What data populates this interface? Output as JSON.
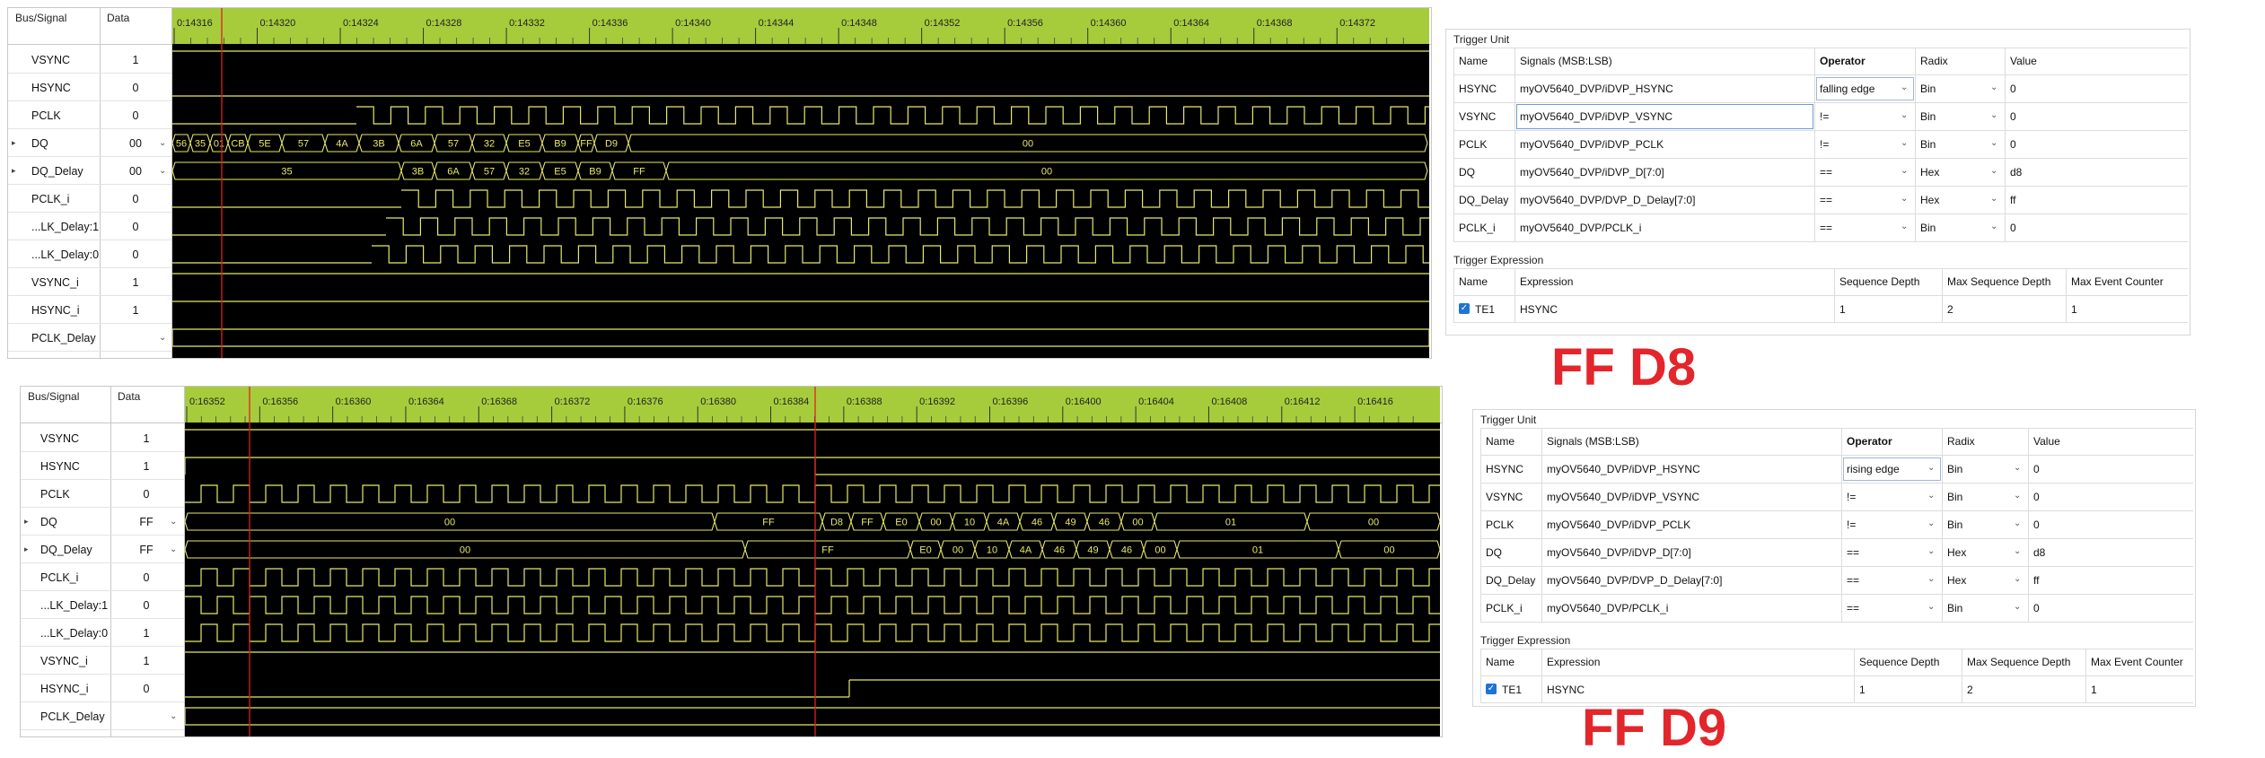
{
  "colors": {
    "wave": "#e8e86a",
    "timeline": "#a6cc3c",
    "cursor": "#e02020",
    "accent": "#e3262b"
  },
  "waves": [
    {
      "headers": {
        "bus_signal": "Bus/Signal",
        "data": "Data"
      },
      "timeline_labels": [
        "0:14316",
        "0:14320",
        "0:14324",
        "0:14328",
        "0:14332",
        "0:14336",
        "0:14340",
        "0:14344",
        "0:14348",
        "0:14352",
        "0:14356",
        "0:14360",
        "0:14364",
        "0:14368",
        "0:14372"
      ],
      "rows": [
        {
          "name": "VSYNC",
          "value": "1"
        },
        {
          "name": "HSYNC",
          "value": "0"
        },
        {
          "name": "PCLK",
          "value": "0"
        },
        {
          "name": "DQ",
          "value": "00"
        },
        {
          "name": "DQ_Delay",
          "value": "00"
        },
        {
          "name": "PCLK_i",
          "value": "0"
        },
        {
          "name": "...LK_Delay:1",
          "value": "0"
        },
        {
          "name": "...LK_Delay:0",
          "value": "0"
        },
        {
          "name": "VSYNC_i",
          "value": "1"
        },
        {
          "name": "HSYNC_i",
          "value": "1"
        },
        {
          "name": "PCLK_Delay",
          "value": ""
        }
      ],
      "dq_labels": [
        "56",
        "35",
        "01",
        "CB",
        "5E",
        "57",
        "4A",
        "3B",
        "6A",
        "57",
        "32",
        "E5",
        "B9",
        "FF",
        "D9",
        "00"
      ],
      "dqd_labels": [
        "35",
        "3B",
        "6A",
        "57",
        "32",
        "E5",
        "B9",
        "FF",
        "00"
      ]
    },
    {
      "headers": {
        "bus_signal": "Bus/Signal",
        "data": "Data"
      },
      "timeline_labels": [
        "0:16352",
        "0:16356",
        "0:16360",
        "0:16364",
        "0:16368",
        "0:16372",
        "0:16376",
        "0:16380",
        "0:16384",
        "0:16388",
        "0:16392",
        "0:16396",
        "0:16400",
        "0:16404",
        "0:16408",
        "0:16412",
        "0:16416"
      ],
      "rows": [
        {
          "name": "VSYNC",
          "value": "1"
        },
        {
          "name": "HSYNC",
          "value": "1"
        },
        {
          "name": "PCLK",
          "value": "0"
        },
        {
          "name": "DQ",
          "value": "FF"
        },
        {
          "name": "DQ_Delay",
          "value": "FF"
        },
        {
          "name": "PCLK_i",
          "value": "0"
        },
        {
          "name": "...LK_Delay:1",
          "value": "0"
        },
        {
          "name": "...LK_Delay:0",
          "value": "1"
        },
        {
          "name": "VSYNC_i",
          "value": "1"
        },
        {
          "name": "HSYNC_i",
          "value": "0"
        },
        {
          "name": "PCLK_Delay",
          "value": ""
        }
      ],
      "dq_labels": [
        "00",
        "FF",
        "D8",
        "FF",
        "E0",
        "00",
        "10",
        "4A",
        "46",
        "49",
        "46",
        "00",
        "01",
        "00"
      ],
      "dqd_labels": [
        "00",
        "FF",
        "E0",
        "00",
        "10",
        "4A",
        "46",
        "49",
        "46",
        "00",
        "01",
        "00"
      ]
    }
  ],
  "triggers": [
    {
      "unit_title": "Trigger Unit",
      "unit_headers": [
        "Name",
        "Signals (MSB:LSB)",
        "Operator",
        "Radix",
        "Value"
      ],
      "unit_rows": [
        {
          "name": "HSYNC",
          "signal": "myOV5640_DVP/iDVP_HSYNC",
          "operator": "falling edge",
          "radix": "Bin",
          "value": "0"
        },
        {
          "name": "VSYNC",
          "signal": "myOV5640_DVP/iDVP_VSYNC",
          "operator": "!=",
          "radix": "Bin",
          "value": "0"
        },
        {
          "name": "PCLK",
          "signal": "myOV5640_DVP/iDVP_PCLK",
          "operator": "!=",
          "radix": "Bin",
          "value": "0"
        },
        {
          "name": "DQ",
          "signal": "myOV5640_DVP/iDVP_D[7:0]",
          "operator": "==",
          "radix": "Hex",
          "value": "d8"
        },
        {
          "name": "DQ_Delay",
          "signal": "myOV5640_DVP/DVP_D_Delay[7:0]",
          "operator": "==",
          "radix": "Hex",
          "value": "ff"
        },
        {
          "name": "PCLK_i",
          "signal": "myOV5640_DVP/PCLK_i",
          "operator": "==",
          "radix": "Bin",
          "value": "0"
        }
      ],
      "expr_title": "Trigger Expression",
      "expr_headers": [
        "Name",
        "Expression",
        "Sequence Depth",
        "Max Sequence Depth",
        "Max Event Counter"
      ],
      "expr_row": {
        "name": "TE1",
        "expression": "HSYNC",
        "seq_depth": "1",
        "max_seq_depth": "2",
        "max_event": "1"
      },
      "big_label": "FF D8"
    },
    {
      "unit_title": "Trigger Unit",
      "unit_headers": [
        "Name",
        "Signals (MSB:LSB)",
        "Operator",
        "Radix",
        "Value"
      ],
      "unit_rows": [
        {
          "name": "HSYNC",
          "signal": "myOV5640_DVP/iDVP_HSYNC",
          "operator": "rising edge",
          "radix": "Bin",
          "value": "0"
        },
        {
          "name": "VSYNC",
          "signal": "myOV5640_DVP/iDVP_VSYNC",
          "operator": "!=",
          "radix": "Bin",
          "value": "0"
        },
        {
          "name": "PCLK",
          "signal": "myOV5640_DVP/iDVP_PCLK",
          "operator": "!=",
          "radix": "Bin",
          "value": "0"
        },
        {
          "name": "DQ",
          "signal": "myOV5640_DVP/iDVP_D[7:0]",
          "operator": "==",
          "radix": "Hex",
          "value": "d8"
        },
        {
          "name": "DQ_Delay",
          "signal": "myOV5640_DVP/DVP_D_Delay[7:0]",
          "operator": "==",
          "radix": "Hex",
          "value": "ff"
        },
        {
          "name": "PCLK_i",
          "signal": "myOV5640_DVP/PCLK_i",
          "operator": "==",
          "radix": "Bin",
          "value": "0"
        }
      ],
      "expr_title": "Trigger Expression",
      "expr_headers": [
        "Name",
        "Expression",
        "Sequence Depth",
        "Max Sequence Depth",
        "Max Event Counter"
      ],
      "expr_row": {
        "name": "TE1",
        "expression": "HSYNC",
        "seq_depth": "1",
        "max_seq_depth": "2",
        "max_event": "1"
      },
      "big_label": "FF D9"
    }
  ]
}
